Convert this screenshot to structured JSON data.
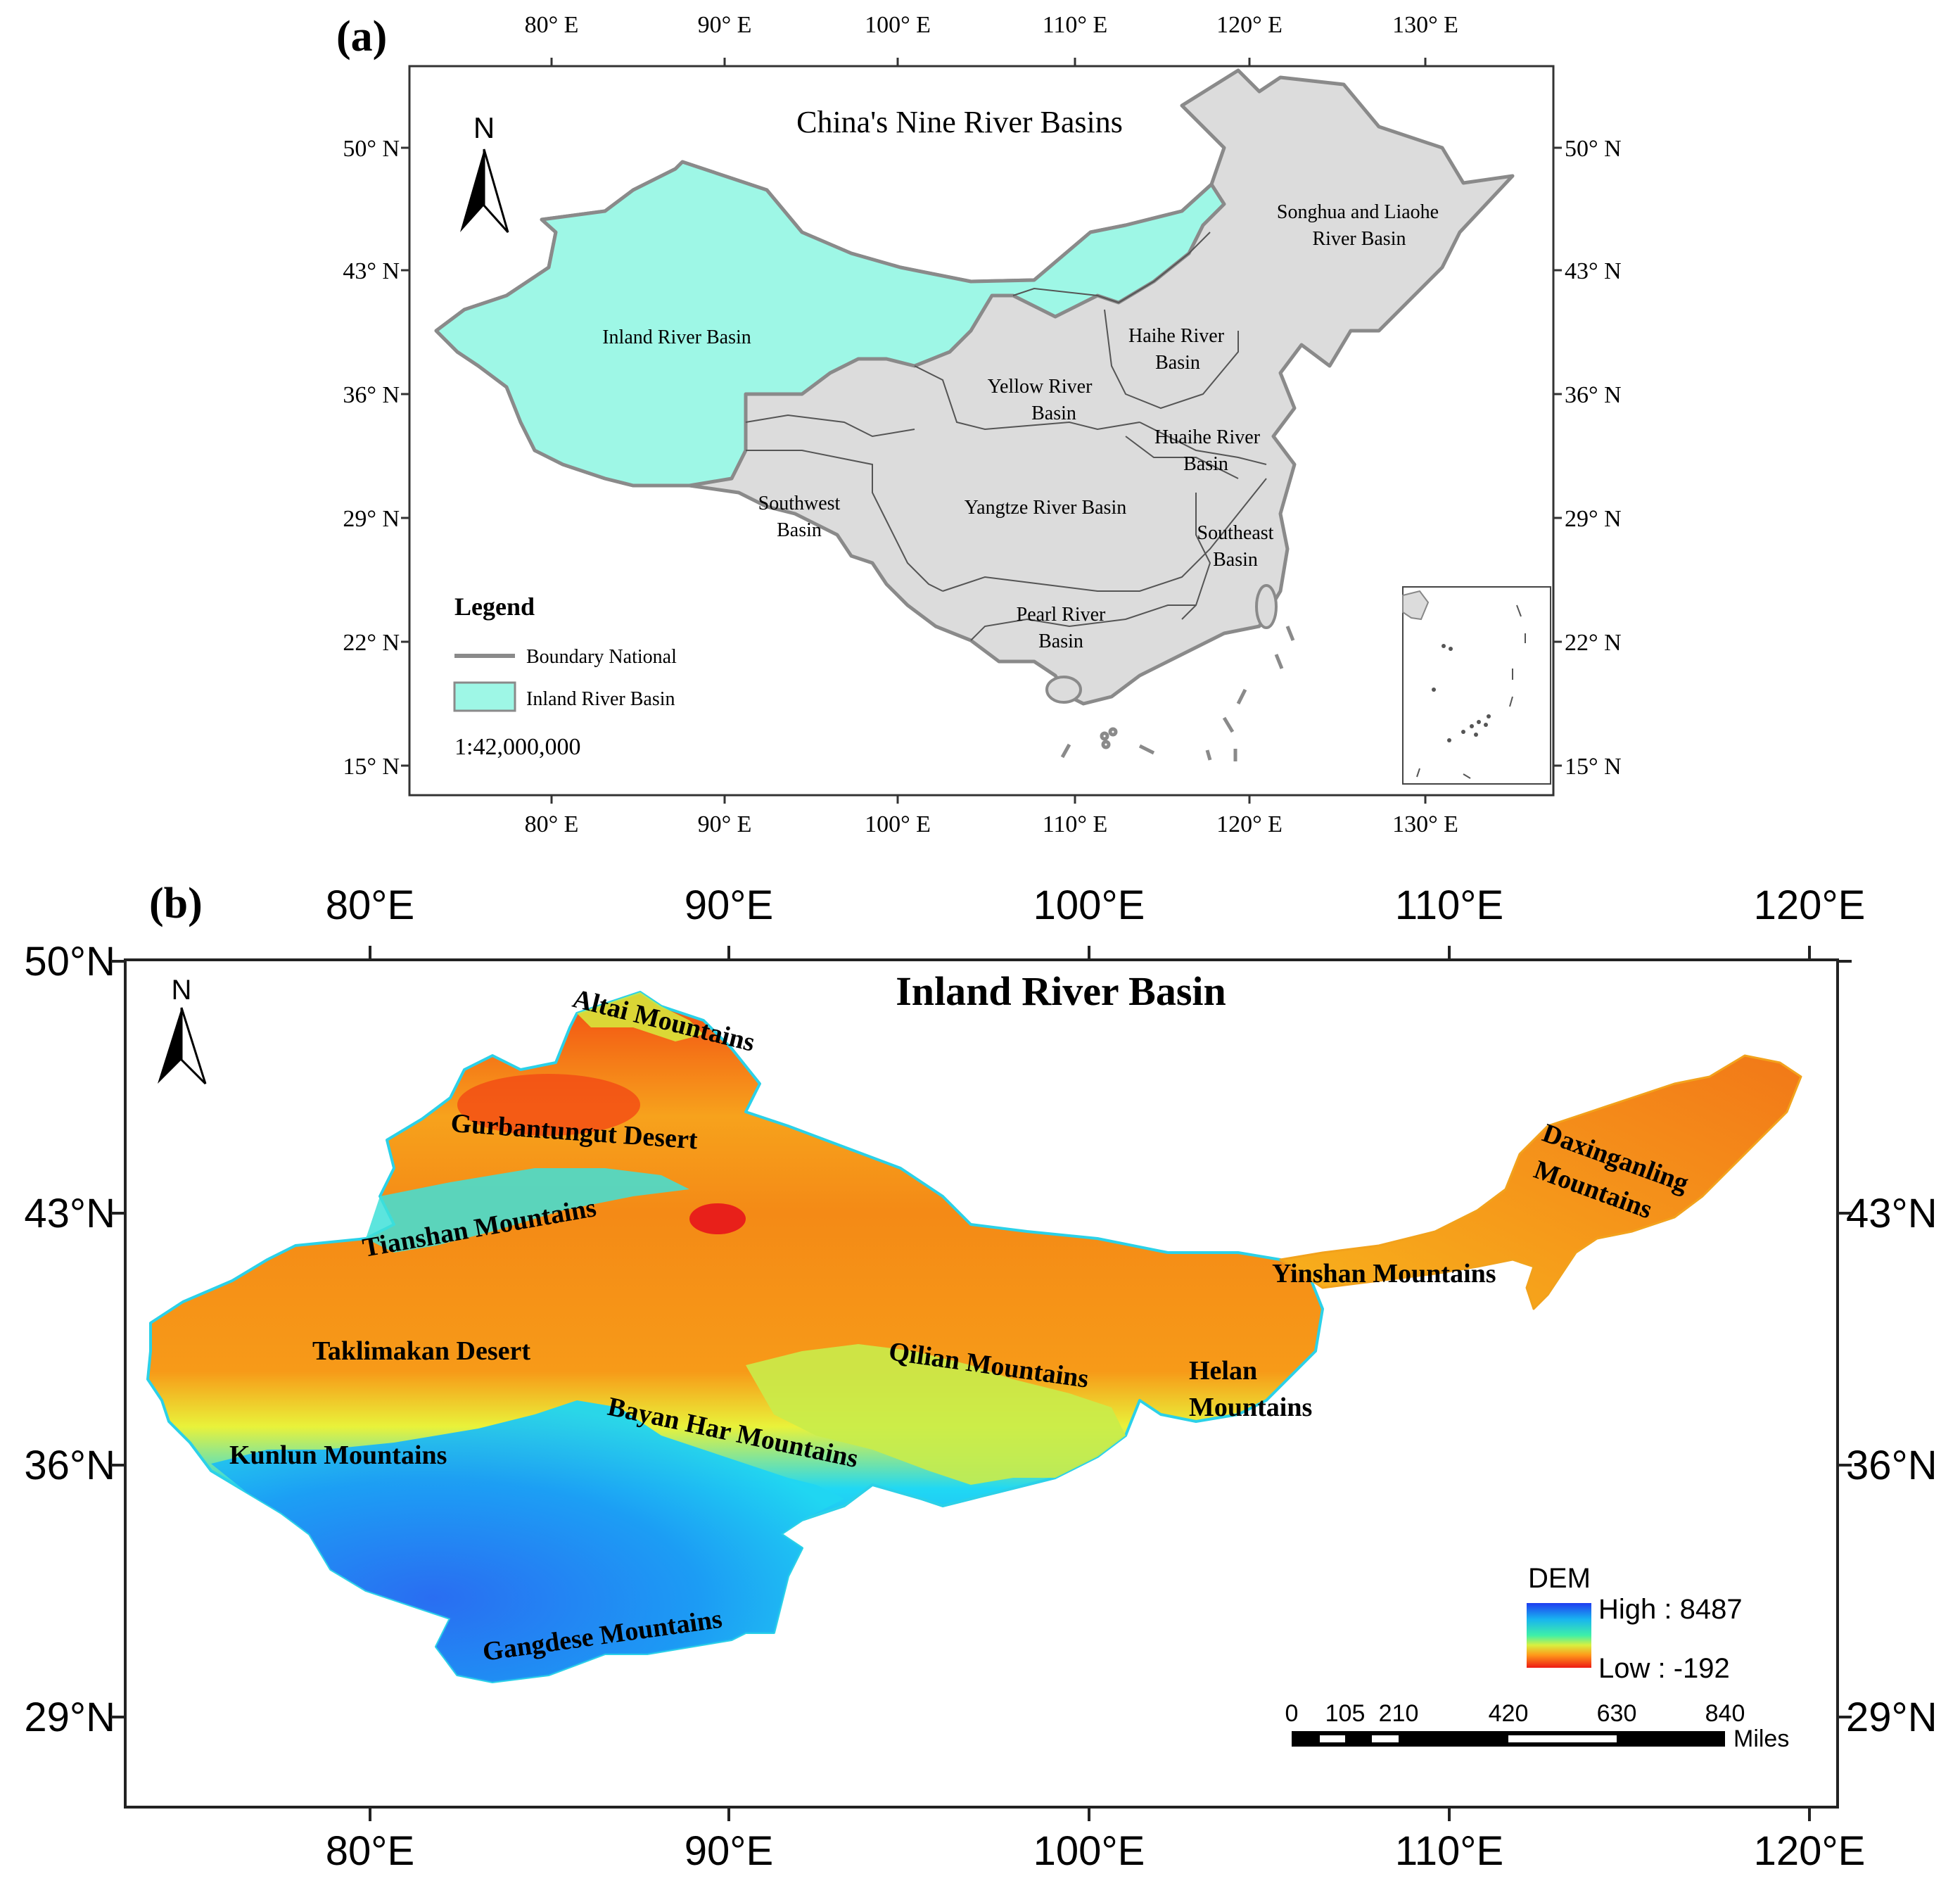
{
  "panel_a": {
    "label": "(a)",
    "title": "China's Nine River Basins",
    "north_label": "N",
    "lon_labels": [
      "80° E",
      "90° E",
      "100° E",
      "110° E",
      "120° E",
      "130° E"
    ],
    "lat_labels": [
      "50° N",
      "43° N",
      "36° N",
      "29° N",
      "22° N",
      "15° N"
    ],
    "basins": {
      "inland": "Inland River Basin",
      "songhua_1": "Songhua and Liaohe",
      "songhua_2": "River Basin",
      "haihe_1": "Haihe River",
      "haihe_2": "Basin",
      "yellow_1": "Yellow River",
      "yellow_2": "Basin",
      "huaihe_1": "Huaihe River",
      "huaihe_2": "Basin",
      "southwest_1": "Southwest",
      "southwest_2": "Basin",
      "yangtze": "Yangtze River Basin",
      "southeast_1": "Southeast",
      "southeast_2": "Basin",
      "pearl_1": "Pearl River",
      "pearl_2": "Basin"
    },
    "legend": {
      "title": "Legend",
      "boundary": "Boundary National",
      "inland": "Inland River Basin"
    },
    "scale": "1:42,000,000",
    "colors": {
      "inland": "#9ef7e6",
      "china": "#dcdcdc",
      "boundary": "#8a8a8a"
    }
  },
  "panel_b": {
    "label": "(b)",
    "title": "Inland River Basin",
    "north_label": "N",
    "lon_labels": [
      "80°E",
      "90°E",
      "100°E",
      "110°E",
      "120°E"
    ],
    "lat_labels": [
      "50°N",
      "43°N",
      "36°N",
      "29°N"
    ],
    "features": {
      "altai": "Altai Mountains",
      "gurban": "Gurbantungut Desert",
      "tianshan": "Tianshan Mountains",
      "taklimakan": "Taklimakan Desert",
      "kunlun": "Kunlun Mountains",
      "bayan": "Bayan Har Mountains",
      "qilian": "Qilian Mountains",
      "helan_1": "Helan",
      "helan_2": "Mountains",
      "yinshan": "Yinshan Mountains",
      "daxing_1": "Daxinganling",
      "daxing_2": "Mountains",
      "gangdese": "Gangdese Mountains"
    },
    "dem_legend": {
      "title": "DEM",
      "high": "High : 8487",
      "low": "Low : -192"
    },
    "scalebar": {
      "ticks": [
        "0",
        "105",
        "210",
        "420",
        "630",
        "840"
      ],
      "unit": "Miles"
    }
  }
}
